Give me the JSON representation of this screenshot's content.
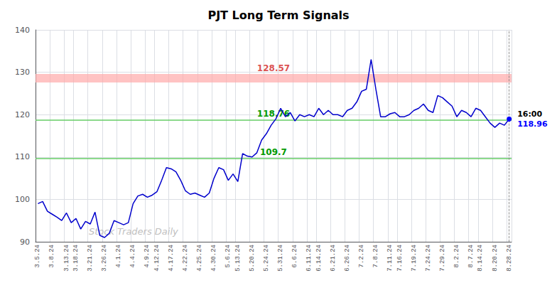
{
  "chart_data": {
    "type": "line",
    "title": "PJT Long Term Signals",
    "categories": [
      "3.5.24",
      null,
      null,
      "3.8.24",
      null,
      null,
      "3.13.24",
      null,
      "3.18.24",
      null,
      null,
      "3.21.24",
      null,
      null,
      "3.26.24",
      null,
      null,
      "4.1.24",
      null,
      null,
      "4.4.24",
      null,
      null,
      "4.9.24",
      null,
      "4.12.24",
      null,
      null,
      "4.17.24",
      null,
      null,
      "4.22.24",
      null,
      null,
      "4.25.24",
      null,
      null,
      "4.30.24",
      null,
      null,
      "5.6.24",
      null,
      "5.13.24",
      null,
      null,
      "5.20.24",
      null,
      null,
      "5.24.24",
      null,
      null,
      "5.31.24",
      null,
      null,
      "6.6.24",
      null,
      null,
      "6.11.24",
      null,
      "6.14.24",
      null,
      null,
      "6.21.24",
      null,
      null,
      "6.26.24",
      null,
      null,
      "7.2.24",
      null,
      null,
      "7.8.24",
      null,
      null,
      "7.11.24",
      null,
      "7.16.24",
      null,
      null,
      "7.19.24",
      null,
      null,
      "7.24.24",
      null,
      null,
      "7.29.24",
      null,
      null,
      "8.2.24",
      null,
      null,
      "8.7.24",
      null,
      "8.14.24",
      null,
      null,
      "8.20.24",
      null,
      null,
      "8.28.24"
    ],
    "values": [
      99.0,
      99.5,
      97.2,
      96.5,
      95.8,
      95.0,
      96.8,
      94.5,
      95.5,
      93.0,
      94.8,
      94.2,
      97.0,
      91.5,
      91.0,
      92.0,
      95.0,
      94.5,
      94.0,
      94.5,
      99.0,
      100.8,
      101.2,
      100.5,
      101.0,
      101.8,
      104.5,
      107.5,
      107.2,
      106.5,
      104.5,
      102.0,
      101.2,
      101.5,
      101.0,
      100.5,
      101.5,
      105.0,
      107.5,
      107.0,
      104.5,
      106.0,
      104.2,
      110.8,
      110.2,
      110.0,
      111.0,
      114.0,
      115.5,
      117.5,
      119.0,
      121.5,
      119.5,
      120.5,
      118.5,
      120.0,
      119.5,
      120.0,
      119.5,
      121.5,
      120.0,
      121.0,
      120.0,
      120.0,
      119.5,
      121.0,
      121.5,
      123.0,
      125.5,
      126.0,
      133.0,
      126.0,
      119.5,
      119.5,
      120.2,
      120.5,
      119.5,
      119.5,
      120.0,
      121.0,
      121.5,
      122.5,
      121.0,
      120.5,
      124.5,
      124.0,
      123.0,
      122.0,
      119.5,
      121.0,
      120.5,
      119.5,
      121.5,
      121.0,
      119.5,
      118.0,
      117.0,
      118.0,
      117.5,
      118.96
    ],
    "color": "#0000cc",
    "ylim": [
      90,
      140
    ],
    "yticks": [
      90,
      100,
      110,
      120,
      130,
      140
    ],
    "grid": true,
    "hlines": [
      {
        "value": 128.57,
        "label": "128.57",
        "color": "#ffaaaa",
        "label_color": "#cc0000"
      },
      {
        "value": 118.76,
        "label": "118.76",
        "color": "#66cc66",
        "label_color": "#009900"
      },
      {
        "value": 109.7,
        "label": "109.7",
        "color": "#66cc66",
        "label_color": "#009900"
      }
    ],
    "watermark": {
      "text": "Stock Traders Daily",
      "color": "#c0c0c0"
    },
    "end_annotation": {
      "time": "16:00",
      "time_color": "#000000",
      "price": "118.96",
      "price_color": "#0000ff",
      "dot_color": "#0000ff"
    }
  }
}
